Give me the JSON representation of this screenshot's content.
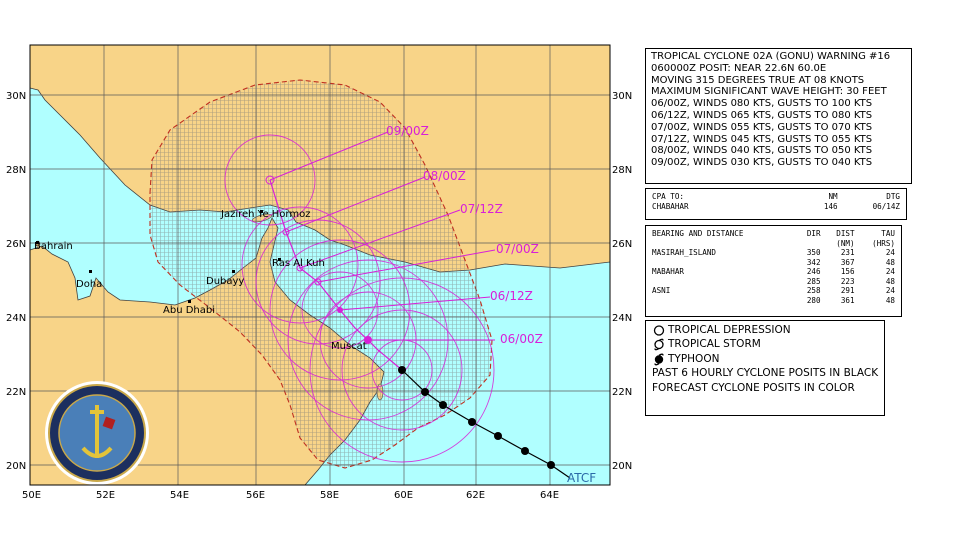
{
  "map": {
    "lat_labels": [
      "30N",
      "28N",
      "26N",
      "24N",
      "22N",
      "20N"
    ],
    "lon_labels": [
      "50E",
      "52E",
      "54E",
      "56E",
      "58E",
      "60E",
      "62E",
      "64E"
    ],
    "places": {
      "bahrain": "Bahrain",
      "doha": "Doha",
      "abu_dhabi": "Abu Dhabi",
      "dubayy": "Dubayy",
      "jazireh": "Jazireh Ye Hormoz",
      "ras_al_kuh": "Ras Al Kuh",
      "muscat": "Muscat"
    },
    "forecast_labels": {
      "t0600": "06/00Z",
      "t0612": "06/12Z",
      "t0700": "07/00Z",
      "t0712": "07/12Z",
      "t0800": "08/00Z",
      "t0900": "09/00Z"
    },
    "atcf_label": "ATCF",
    "colors": {
      "land": "#f8d488",
      "water": "#b0ffff",
      "forecast": "#d81fd8",
      "danger_area": "#c03020",
      "grid": "#808080"
    }
  },
  "warning": {
    "lines": [
      "TROPICAL CYCLONE 02A (GONU) WARNING #16",
      "060000Z POSIT: NEAR 22.6N 60.0E",
      "MOVING 315 DEGREES TRUE AT 08 KNOTS",
      "MAXIMUM SIGNIFICANT WAVE HEIGHT: 30 FEET",
      "06/00Z, WINDS 080 KTS, GUSTS TO 100 KTS",
      "06/12Z, WINDS 065 KTS, GUSTS TO 080 KTS",
      "07/00Z, WINDS 055 KTS, GUSTS TO 070 KTS",
      "07/12Z, WINDS 045 KTS, GUSTS TO 055 KTS",
      "08/00Z, WINDS 040 KTS, GUSTS TO 050 KTS",
      "09/00Z, WINDS 030 KTS, GUSTS TO 040 KTS"
    ]
  },
  "cpa": {
    "header": {
      "label": "CPA TO:",
      "nm": "NM",
      "dtg": "DTG"
    },
    "rows": [
      {
        "place": "CHABAHAR",
        "nm": "146",
        "dtg": "06/14Z"
      }
    ]
  },
  "bearing": {
    "header": {
      "label": "BEARING AND DISTANCE",
      "dir": "DIR",
      "dist": "DIST",
      "dist_unit": "(NM)",
      "tau": "TAU",
      "tau_unit": "(HRS)"
    },
    "rows": [
      {
        "place": "MASIRAH_ISLAND",
        "dir": "350",
        "dist": "231",
        "tau": "24"
      },
      {
        "place": "",
        "dir": "342",
        "dist": "367",
        "tau": "48"
      },
      {
        "place": "MABAHAR",
        "dir": "246",
        "dist": "156",
        "tau": "24"
      },
      {
        "place": "",
        "dir": "285",
        "dist": "223",
        "tau": "48"
      },
      {
        "place": "ASNI",
        "dir": "258",
        "dist": "291",
        "tau": "24"
      },
      {
        "place": "",
        "dir": "280",
        "dist": "361",
        "tau": "48"
      }
    ]
  },
  "legend": {
    "tropical_depression": "TROPICAL DEPRESSION",
    "tropical_storm": "TROPICAL STORM",
    "typhoon": "TYPHOON",
    "note1": "PAST 6 HOURLY CYCLONE POSITS IN BLACK",
    "note2": "FORECAST CYCLONE POSITS IN COLOR"
  }
}
